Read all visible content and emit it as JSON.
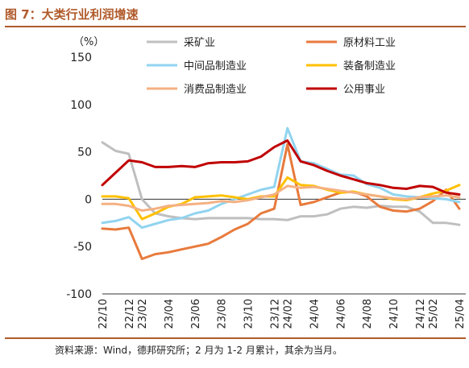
{
  "figure": {
    "title": "图 7：大类行业利润增速",
    "source": "资料来源：Wind，德邦研究所；2 月为 1-2 月累计，其余为当月。"
  },
  "chart_data": {
    "type": "line",
    "title": "",
    "ylabel": "（%）",
    "xlabel": "",
    "ylim": [
      -100,
      150
    ],
    "yticks": [
      150,
      100,
      50,
      0,
      -50,
      -100
    ],
    "x_tick_labels": [
      "22/10",
      "22/12",
      "23/02",
      "23/04",
      "23/06",
      "23/08",
      "23/10",
      "23/12",
      "24/02",
      "24/04",
      "24/06",
      "24/08",
      "24/10",
      "24/12",
      "25/02",
      "25/04"
    ],
    "categories": [
      "22/10",
      "22/11",
      "22/12",
      "23/02",
      "23/03",
      "23/04",
      "23/05",
      "23/06",
      "23/07",
      "23/08",
      "23/09",
      "23/10",
      "23/11",
      "23/12",
      "24/02",
      "24/03",
      "24/04",
      "24/05",
      "24/06",
      "24/07",
      "24/08",
      "24/09",
      "24/10",
      "24/11",
      "24/12",
      "25/02",
      "25/03",
      "25/04"
    ],
    "legend_position": "top",
    "series": [
      {
        "name": "采矿业",
        "color": "#bfbfbf",
        "values": [
          60,
          51,
          48,
          0,
          -15,
          -18,
          -20,
          -21,
          -20,
          -20,
          -20,
          -20,
          -21,
          -21,
          -22,
          -18,
          -18,
          -16,
          -10,
          -8,
          -9,
          -7,
          -8,
          -8,
          -13,
          -25,
          -25,
          -27
        ]
      },
      {
        "name": "原材料工业",
        "color": "#e87a3c",
        "values": [
          -31,
          -32,
          -30,
          -63,
          -58,
          -56,
          -53,
          -50,
          -47,
          -40,
          -32,
          -26,
          -15,
          -10,
          58,
          -6,
          -3,
          2,
          7,
          8,
          3,
          -8,
          -12,
          -13,
          -10,
          -2,
          10,
          -10
        ]
      },
      {
        "name": "中间品制造业",
        "color": "#92d4f0",
        "values": [
          -25,
          -23,
          -19,
          -30,
          -26,
          -22,
          -20,
          -15,
          -12,
          -5,
          0,
          5,
          10,
          13,
          75,
          40,
          38,
          32,
          26,
          25,
          16,
          12,
          5,
          3,
          2,
          1,
          0,
          -3
        ]
      },
      {
        "name": "装备制造业",
        "color": "#ffc000",
        "values": [
          3,
          3,
          1,
          -21,
          -15,
          -8,
          -5,
          2,
          3,
          4,
          2,
          0,
          3,
          3,
          23,
          15,
          14,
          10,
          7,
          8,
          5,
          3,
          0,
          -1,
          2,
          6,
          9,
          15
        ]
      },
      {
        "name": "消费品制造业",
        "color": "#f4b183",
        "values": [
          -5,
          -5,
          -7,
          -12,
          -10,
          -7,
          -6,
          -5,
          -4,
          -2,
          -3,
          -1,
          2,
          5,
          14,
          12,
          13,
          11,
          9,
          7,
          5,
          3,
          1,
          0,
          2,
          3,
          4,
          2
        ]
      },
      {
        "name": "公用事业",
        "color": "#c00000",
        "values": [
          15,
          28,
          41,
          39,
          34,
          34,
          35,
          34,
          38,
          39,
          39,
          40,
          45,
          55,
          62,
          40,
          36,
          30,
          25,
          21,
          17,
          15,
          12,
          11,
          14,
          13,
          7,
          5
        ]
      }
    ]
  }
}
